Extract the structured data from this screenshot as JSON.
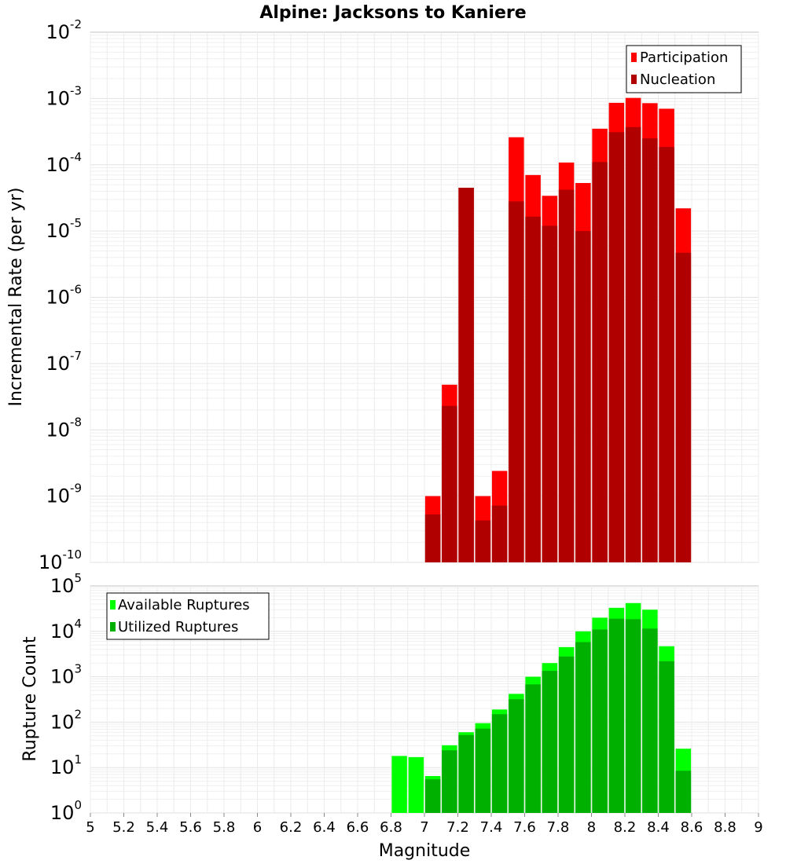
{
  "chart_data": [
    {
      "type": "bar",
      "title": "Alpine: Jacksons to Kaniere",
      "ylabel": "Incremental Rate (per yr)",
      "xlabel": "",
      "xlim": [
        5,
        9
      ],
      "ylim": [
        1e-10,
        0.01
      ],
      "yscale": "log",
      "grid": true,
      "legend_position": "top-right",
      "x": [
        7.05,
        7.15,
        7.25,
        7.35,
        7.45,
        7.55,
        7.65,
        7.75,
        7.85,
        7.95,
        8.05,
        8.15,
        8.25,
        8.35,
        8.45,
        8.55
      ],
      "series": [
        {
          "name": "Participation",
          "color": "#ff0000",
          "values": [
            1e-09,
            4.8e-08,
            4.5e-05,
            1e-09,
            2.4e-09,
            0.00026,
            7e-05,
            3.4e-05,
            0.000108,
            5.3e-05,
            0.00035,
            0.00086,
            0.00102,
            0.00085,
            0.0007,
            2.2e-05
          ]
        },
        {
          "name": "Nucleation",
          "color": "#b00000",
          "values": [
            5.3e-10,
            2.3e-08,
            4.5e-05,
            4.3e-10,
            7.2e-10,
            2.8e-05,
            1.65e-05,
            1.2e-05,
            4.2e-05,
            1e-05,
            0.00011,
            0.00031,
            0.00037,
            0.00025,
            0.000185,
            4.7e-06
          ]
        }
      ]
    },
    {
      "type": "bar",
      "title": "",
      "ylabel": "Rupture Count",
      "xlabel": "Magnitude",
      "xlim": [
        5,
        9
      ],
      "ylim": [
        1,
        100000.0
      ],
      "yscale": "log",
      "grid": true,
      "legend_position": "top-left",
      "x_ticks": [
        "5",
        "5.2",
        "5.4",
        "5.6",
        "5.8",
        "6",
        "6.2",
        "6.4",
        "6.6",
        "6.8",
        "7",
        "7.2",
        "7.4",
        "7.6",
        "7.8",
        "8",
        "8.2",
        "8.4",
        "8.6",
        "8.8",
        "9"
      ],
      "x": [
        6.85,
        6.95,
        7.05,
        7.15,
        7.25,
        7.35,
        7.45,
        7.55,
        7.65,
        7.75,
        7.85,
        7.95,
        8.05,
        8.15,
        8.25,
        8.35,
        8.45,
        8.55
      ],
      "series": [
        {
          "name": "Available Ruptures",
          "color": "#00ff00",
          "values": [
            18,
            17,
            6.5,
            31,
            60,
            95,
            190,
            420,
            1000,
            2000,
            4500,
            10000,
            20000,
            33000,
            42000,
            30000,
            4700,
            26
          ]
        },
        {
          "name": "Utilized Ruptures",
          "color": "#00b000",
          "values": [
            0,
            0,
            5.5,
            24,
            52,
            72,
            150,
            320,
            680,
            1350,
            2800,
            5800,
            11000,
            19000,
            18500,
            11500,
            2200,
            8.5
          ]
        }
      ]
    }
  ]
}
